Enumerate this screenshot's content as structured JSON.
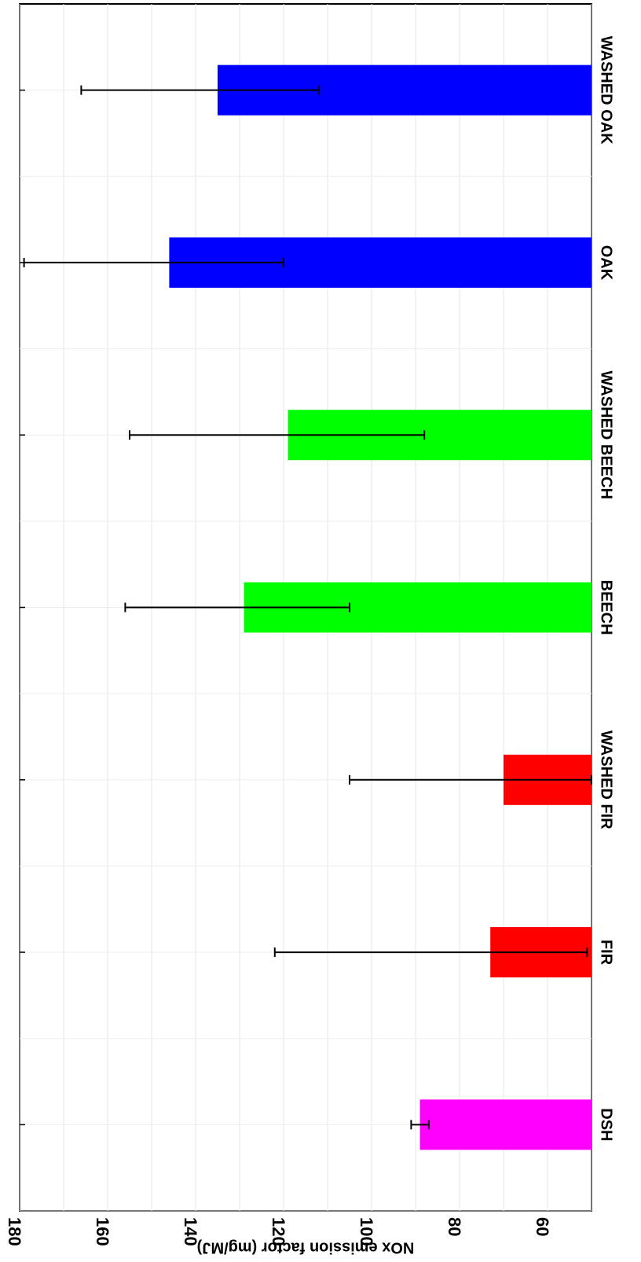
{
  "chart_data": {
    "type": "bar",
    "orientation": "horizontal",
    "rotated_page": true,
    "categories": [
      "DSH",
      "FIR",
      "WASHED FIR",
      "BEECH",
      "WASHED BEECH",
      "OAK",
      "WASHED OAK"
    ],
    "values": [
      89,
      73,
      70,
      129,
      119,
      146,
      135
    ],
    "error_high": [
      91,
      122,
      105,
      156,
      155,
      179,
      166
    ],
    "error_low": [
      87,
      51,
      50,
      105,
      88,
      120,
      112
    ],
    "colors": [
      "#ff00ff",
      "#ff0000",
      "#ff0000",
      "#00ff00",
      "#00ff00",
      "#0000ff",
      "#0000ff"
    ],
    "ylabel": "NOx emission factor (mg/MJ)",
    "ylim": [
      50,
      180
    ],
    "ticks": [
      60,
      80,
      100,
      120,
      140,
      160,
      180
    ],
    "tick_labels": [
      "60",
      "80",
      "100",
      "120",
      "140",
      "160",
      "180"
    ],
    "grid": true,
    "error_bar_color": "#000000"
  }
}
